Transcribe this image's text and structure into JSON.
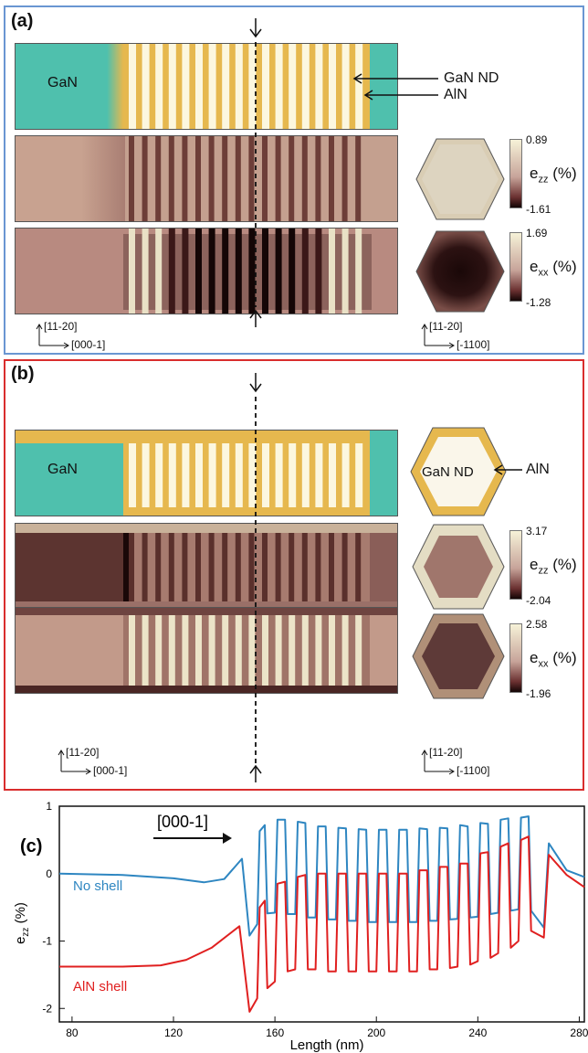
{
  "panel_a": {
    "label": "(a)",
    "gan_label": "GaN",
    "annot_gan_nd": "GaN ND",
    "annot_aln": "AlN",
    "ezz_max": "0.89",
    "ezz_min": "-1.61",
    "exx_max": "1.69",
    "exx_min": "-1.28",
    "ezz_symbol": "e",
    "ezz_sub": "zz",
    "exx_symbol": "e",
    "exx_sub": "xx",
    "unit": " (%)",
    "axis_left_up": "[11-20]",
    "axis_left_right": "[000-1]",
    "axis_right_up": "[11-20]",
    "axis_right_right": "[-1100]"
  },
  "panel_b": {
    "label": "(b)",
    "gan_label": "GaN",
    "hex_label": "GaN ND",
    "annot_aln": "AlN",
    "ezz_max": "3.17",
    "ezz_min": "-2.04",
    "exx_max": "2.58",
    "exx_min": "-1.96",
    "ezz_symbol": "e",
    "ezz_sub": "zz",
    "exx_symbol": "e",
    "exx_sub": "xx",
    "unit": " (%)",
    "axis_left_up": "[11-20]",
    "axis_left_right": "[000-1]",
    "axis_right_up": "[11-20]",
    "axis_right_right": "[-1100]"
  },
  "panel_c": {
    "label": "(c)",
    "arrow_label": "[000-1]"
  },
  "colors": {
    "gan_teal": "#4fc0ad",
    "aln_gold": "#e6b84e",
    "nd_cream": "#fcf7df",
    "strain_base": "#c29a8a",
    "strain_dark": "#2a1010",
    "strain_light": "#f2eed2",
    "no_shell": "#2e86c1",
    "aln_shell": "#e02020",
    "panel_a_border": "#6a96d2",
    "panel_b_border": "#d92d2d"
  },
  "chart_data": {
    "type": "line",
    "xlabel": "Length (nm)",
    "ylabel": "e",
    "ylabel_sub": "zz",
    "ylabel_unit": " (%)",
    "xlim": [
      75,
      282
    ],
    "ylim": [
      -2.2,
      1.0
    ],
    "xticks": [
      80,
      120,
      160,
      200,
      240,
      280
    ],
    "yticks": [
      1,
      0,
      -1,
      -2
    ],
    "series": [
      {
        "name": "No shell",
        "color": "#2e86c1",
        "points": [
          [
            75,
            0
          ],
          [
            100,
            -0.02
          ],
          [
            120,
            -0.07
          ],
          [
            132,
            -0.13
          ],
          [
            140,
            -0.08
          ],
          [
            147,
            0.22
          ],
          [
            150,
            -0.92
          ],
          [
            153,
            -0.75
          ],
          [
            154,
            0.63
          ],
          [
            156,
            0.72
          ],
          [
            157,
            -0.59
          ],
          [
            160,
            -0.58
          ],
          [
            161,
            0.8
          ],
          [
            164,
            0.8
          ],
          [
            165,
            -0.6
          ],
          [
            168,
            -0.6
          ],
          [
            169,
            0.77
          ],
          [
            172,
            0.75
          ],
          [
            173,
            -0.65
          ],
          [
            176,
            -0.65
          ],
          [
            177,
            0.7
          ],
          [
            180,
            0.7
          ],
          [
            181,
            -0.68
          ],
          [
            184,
            -0.68
          ],
          [
            185,
            0.68
          ],
          [
            188,
            0.67
          ],
          [
            189,
            -0.7
          ],
          [
            192,
            -0.7
          ],
          [
            193,
            0.66
          ],
          [
            196,
            0.65
          ],
          [
            197,
            -0.72
          ],
          [
            200,
            -0.72
          ],
          [
            201,
            0.65
          ],
          [
            204,
            0.65
          ],
          [
            205,
            -0.72
          ],
          [
            208,
            -0.72
          ],
          [
            209,
            0.65
          ],
          [
            212,
            0.65
          ],
          [
            213,
            -0.72
          ],
          [
            216,
            -0.72
          ],
          [
            217,
            0.67
          ],
          [
            220,
            0.66
          ],
          [
            221,
            -0.7
          ],
          [
            224,
            -0.7
          ],
          [
            225,
            0.68
          ],
          [
            228,
            0.67
          ],
          [
            229,
            -0.68
          ],
          [
            232,
            -0.67
          ],
          [
            233,
            0.72
          ],
          [
            236,
            0.7
          ],
          [
            237,
            -0.65
          ],
          [
            240,
            -0.64
          ],
          [
            241,
            0.75
          ],
          [
            244,
            0.74
          ],
          [
            245,
            -0.6
          ],
          [
            248,
            -0.58
          ],
          [
            249,
            0.8
          ],
          [
            252,
            0.82
          ],
          [
            253,
            -0.55
          ],
          [
            256,
            -0.53
          ],
          [
            257,
            0.83
          ],
          [
            260,
            0.85
          ],
          [
            261,
            -0.55
          ],
          [
            266,
            -0.8
          ],
          [
            268,
            0.45
          ],
          [
            275,
            0.05
          ],
          [
            282,
            -0.05
          ]
        ]
      },
      {
        "name": "AlN shell",
        "color": "#e02020",
        "points": [
          [
            75,
            -1.38
          ],
          [
            100,
            -1.38
          ],
          [
            115,
            -1.36
          ],
          [
            125,
            -1.28
          ],
          [
            135,
            -1.1
          ],
          [
            146,
            -0.78
          ],
          [
            150,
            -2.05
          ],
          [
            153,
            -1.85
          ],
          [
            154,
            -0.5
          ],
          [
            156,
            -0.4
          ],
          [
            157,
            -1.7
          ],
          [
            160,
            -1.6
          ],
          [
            161,
            -0.15
          ],
          [
            164,
            -0.12
          ],
          [
            165,
            -1.45
          ],
          [
            168,
            -1.42
          ],
          [
            169,
            -0.05
          ],
          [
            172,
            -0.02
          ],
          [
            173,
            -1.42
          ],
          [
            176,
            -1.42
          ],
          [
            177,
            0.0
          ],
          [
            180,
            0.0
          ],
          [
            181,
            -1.45
          ],
          [
            184,
            -1.45
          ],
          [
            185,
            0.0
          ],
          [
            188,
            0.0
          ],
          [
            189,
            -1.45
          ],
          [
            192,
            -1.45
          ],
          [
            193,
            0.0
          ],
          [
            196,
            0.0
          ],
          [
            197,
            -1.45
          ],
          [
            200,
            -1.45
          ],
          [
            201,
            0.0
          ],
          [
            204,
            0.0
          ],
          [
            205,
            -1.45
          ],
          [
            208,
            -1.45
          ],
          [
            209,
            0.0
          ],
          [
            212,
            0.0
          ],
          [
            213,
            -1.45
          ],
          [
            216,
            -1.45
          ],
          [
            217,
            0.05
          ],
          [
            220,
            0.05
          ],
          [
            221,
            -1.42
          ],
          [
            224,
            -1.42
          ],
          [
            225,
            0.1
          ],
          [
            228,
            0.1
          ],
          [
            229,
            -1.4
          ],
          [
            232,
            -1.38
          ],
          [
            233,
            0.15
          ],
          [
            236,
            0.15
          ],
          [
            237,
            -1.35
          ],
          [
            240,
            -1.3
          ],
          [
            241,
            0.3
          ],
          [
            244,
            0.32
          ],
          [
            245,
            -1.25
          ],
          [
            248,
            -1.18
          ],
          [
            249,
            0.4
          ],
          [
            252,
            0.45
          ],
          [
            253,
            -1.1
          ],
          [
            256,
            -1.0
          ],
          [
            257,
            0.5
          ],
          [
            260,
            0.55
          ],
          [
            261,
            -0.85
          ],
          [
            266,
            -0.95
          ],
          [
            268,
            0.28
          ],
          [
            275,
            -0.02
          ],
          [
            282,
            -0.2
          ]
        ]
      }
    ]
  }
}
